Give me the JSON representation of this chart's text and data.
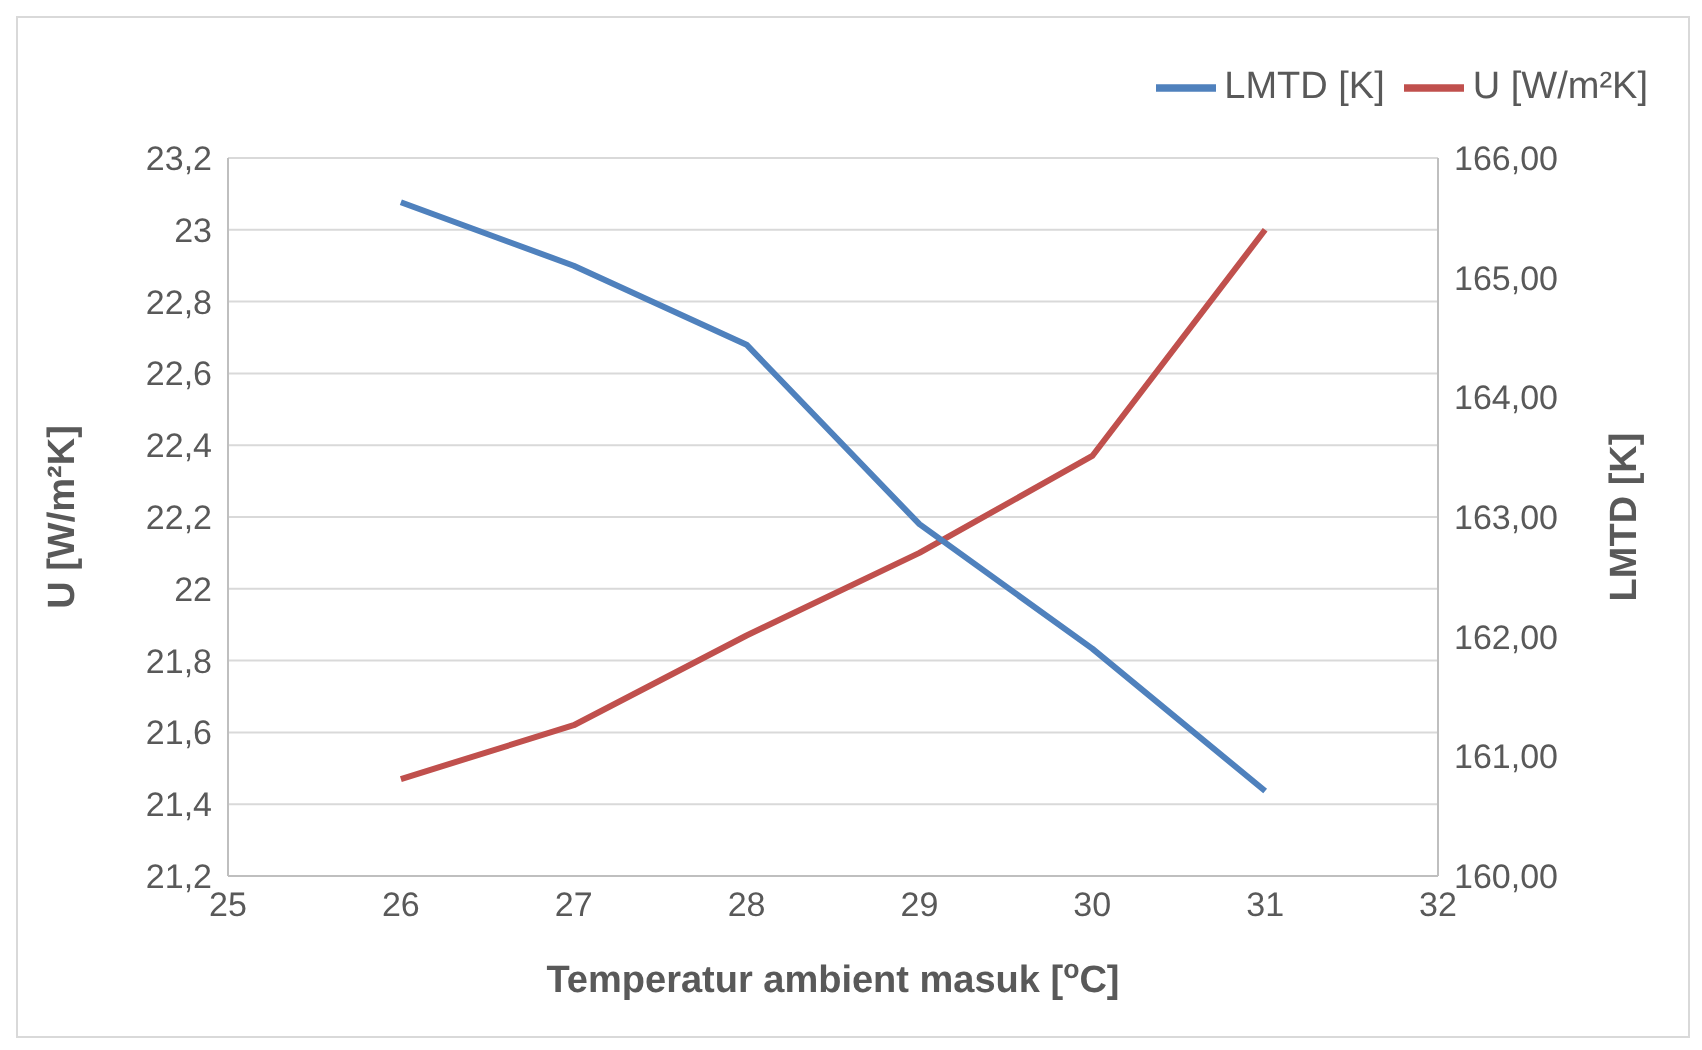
{
  "chart_data": {
    "type": "line",
    "xlabel": "Temperatur ambient masuk [$^{o}$C]",
    "ylabel": "U [W/m²K]",
    "y2label": "LMTD [K]",
    "x": [
      26,
      27,
      28,
      29,
      30,
      31
    ],
    "series": [
      {
        "name": "U [W/m²K]",
        "color": "#c0504d",
        "values": [
          21.47,
          21.62,
          21.87,
          22.1,
          22.37,
          23.0
        ]
      },
      {
        "name": "LMTD [K]",
        "color": "#4f81bd",
        "axis": "y2",
        "values": [
          165.63,
          165.1,
          164.44,
          162.94,
          161.9,
          160.71
        ]
      }
    ],
    "xlim": [
      25,
      32
    ],
    "xticks": [
      25,
      26,
      27,
      28,
      29,
      30,
      31,
      32
    ],
    "ylim": [
      21.2,
      23.2
    ],
    "yticks": [
      {
        "value": 21.2,
        "label": "21,2"
      },
      {
        "value": 21.4,
        "label": "21,4"
      },
      {
        "value": 21.6,
        "label": "21,6"
      },
      {
        "value": 21.8,
        "label": "21,8"
      },
      22,
      {
        "value": 22.2,
        "label": "22,2"
      },
      {
        "value": 22.4,
        "label": "22,4"
      },
      {
        "value": 22.6,
        "label": "22,6"
      },
      {
        "value": 22.8,
        "label": "22,8"
      },
      23,
      {
        "value": 23.2,
        "label": "23,2"
      }
    ],
    "y2lim": [
      160,
      166
    ],
    "y2ticks": [
      {
        "value": 160,
        "label": "160,00"
      },
      {
        "value": 161,
        "label": "161,00"
      },
      {
        "value": 162,
        "label": "162,00"
      },
      {
        "value": 163,
        "label": "163,00"
      },
      {
        "value": 164,
        "label": "164,00"
      },
      {
        "value": 165,
        "label": "165,00"
      },
      {
        "value": 166,
        "label": "166,00"
      }
    ],
    "grid": "y",
    "legend": "top right",
    "marker": "none",
    "line_style": "solid"
  }
}
